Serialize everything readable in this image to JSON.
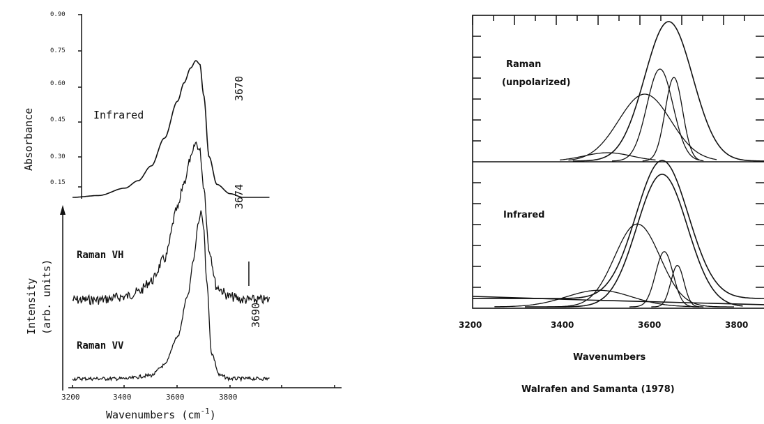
{
  "chart_data": [
    {
      "type": "line",
      "panel": "left",
      "xlabel": "Wavenumbers (cm",
      "xlabel_sup": "-1",
      "xlabel_close": ")",
      "xlim": [
        3200,
        3950
      ],
      "x_ticks": [
        "3200",
        "3400",
        "3600",
        "3800"
      ],
      "absorbance_axis": {
        "label": "Absorbance",
        "ticks": [
          "0.90",
          "0.75",
          "0.60",
          "0.45",
          "0.30",
          "0.15"
        ],
        "ylim": [
          0,
          0.9
        ]
      },
      "intensity_axis": {
        "label_line1": "Intensity",
        "label_line2": "(arb. units)"
      },
      "series": [
        {
          "name": "Infrared",
          "peak_label": "3670",
          "x": [
            3200,
            3300,
            3400,
            3450,
            3500,
            3550,
            3600,
            3625,
            3650,
            3670,
            3685,
            3700,
            3720,
            3750,
            3800,
            3850,
            3950
          ],
          "values": [
            0.0,
            0.01,
            0.05,
            0.09,
            0.17,
            0.32,
            0.52,
            0.62,
            0.7,
            0.74,
            0.72,
            0.55,
            0.22,
            0.07,
            0.02,
            0.0,
            0.0
          ]
        },
        {
          "name": "Raman VH",
          "peak_label": "3674",
          "x": [
            3200,
            3300,
            3400,
            3450,
            3500,
            3550,
            3600,
            3625,
            3650,
            3670,
            3685,
            3700,
            3720,
            3750,
            3800,
            3850,
            3950
          ],
          "values": [
            0.0,
            0.0,
            0.02,
            0.05,
            0.12,
            0.26,
            0.58,
            0.75,
            0.9,
            1.0,
            0.95,
            0.72,
            0.32,
            0.08,
            0.02,
            0.0,
            0.0
          ]
        },
        {
          "name": "Raman VV",
          "peak_label": "3690",
          "x": [
            3200,
            3400,
            3500,
            3550,
            3600,
            3640,
            3660,
            3680,
            3690,
            3700,
            3710,
            3730,
            3760,
            3800,
            3950
          ],
          "values": [
            0.0,
            0.0,
            0.02,
            0.08,
            0.25,
            0.5,
            0.7,
            0.93,
            1.0,
            0.9,
            0.6,
            0.15,
            0.02,
            0.0,
            0.0
          ]
        }
      ]
    },
    {
      "type": "line",
      "panel": "right",
      "xlabel": "Wavenumbers",
      "caption": "Walrafen and Samanta (1978)",
      "xlim": [
        3200,
        3870
      ],
      "x_ticks": [
        "3200",
        "3400",
        "3600",
        "3800"
      ],
      "subpanels": [
        {
          "name": "Raman",
          "name_line2": "(unpolarized)",
          "series": [
            {
              "center": 3650,
              "width": 55,
              "height": 1.0,
              "role": "envelope"
            },
            {
              "center": 3595,
              "width": 60,
              "height": 0.48
            },
            {
              "center": 3630,
              "width": 30,
              "height": 0.66
            },
            {
              "center": 3662,
              "width": 20,
              "height": 0.6
            },
            {
              "center": 3510,
              "width": 55,
              "height": 0.06
            }
          ]
        },
        {
          "name": "Infrared",
          "series": [
            {
              "center": 3635,
              "width": 60,
              "height": 1.0,
              "role": "envelope"
            },
            {
              "center": 3635,
              "width": 58,
              "height": 0.96,
              "role": "envelope-fit"
            },
            {
              "center": 3578,
              "width": 52,
              "height": 0.6
            },
            {
              "center": 3640,
              "width": 20,
              "height": 0.4
            },
            {
              "center": 3670,
              "width": 15,
              "height": 0.3
            },
            {
              "center": 3490,
              "width": 75,
              "height": 0.12
            }
          ]
        }
      ]
    }
  ]
}
